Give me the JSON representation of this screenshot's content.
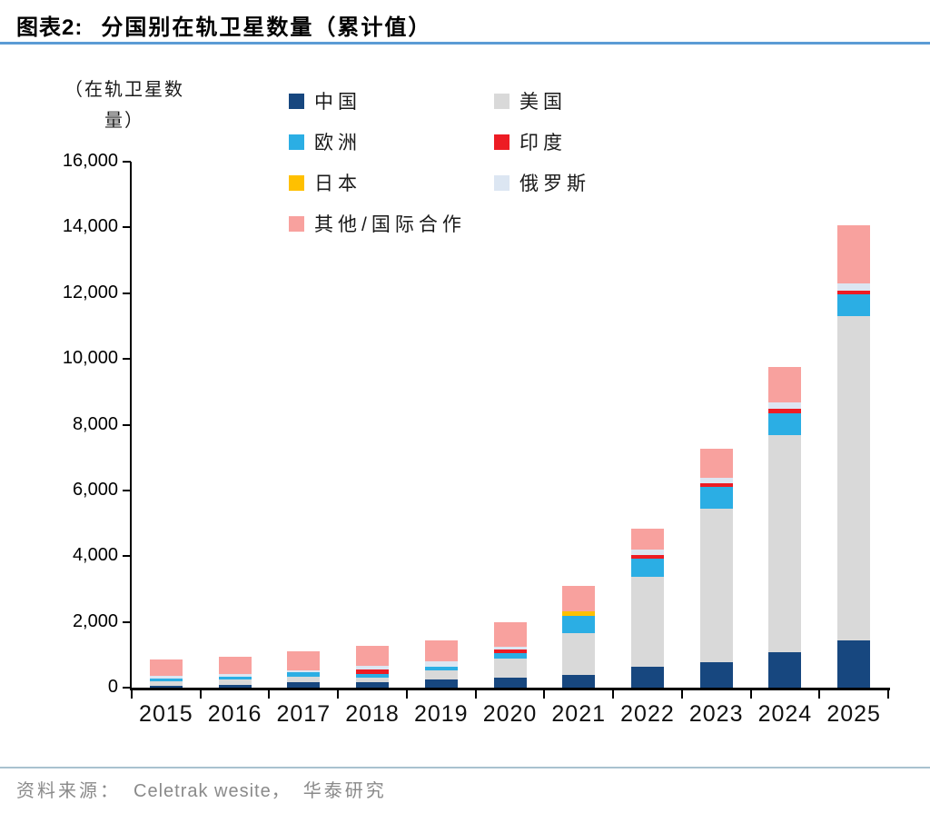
{
  "header": {
    "figure_label": "图表2:",
    "title": "分国别在轨卫星数量（累计值）"
  },
  "footer": {
    "source_prefix": "资料来源：",
    "source_name": "Celetrak wesite，",
    "source_org": "华泰研究"
  },
  "colors": {
    "axis": "#000000",
    "title_rule": "#5b9bd5",
    "footer_rule": "#a9c2cf",
    "source_text": "#8a8a8a"
  },
  "chart_data": {
    "type": "bar",
    "stacked": true,
    "title": "分国别在轨卫星数量（累计值）",
    "unit_label_lines": [
      "（在轨卫星数",
      "量）"
    ],
    "xlabel": "",
    "ylabel": "（在轨卫星数量）",
    "ylim": [
      0,
      16000
    ],
    "ytick_step": 2000,
    "yticks": [
      "0",
      "2,000",
      "4,000",
      "6,000",
      "8,000",
      "10,000",
      "12,000",
      "14,000",
      "16,000"
    ],
    "grid": false,
    "legend_position": "top",
    "categories": [
      "2015",
      "2016",
      "2017",
      "2018",
      "2019",
      "2020",
      "2021",
      "2022",
      "2023",
      "2024",
      "2025"
    ],
    "series": [
      {
        "name": "中国",
        "key": "china",
        "color": "#17477f",
        "values": [
          60,
          70,
          165,
          165,
          250,
          300,
          390,
          640,
          775,
          1080,
          1440
        ]
      },
      {
        "name": "美国",
        "key": "usa",
        "color": "#d9d9d9",
        "values": [
          150,
          160,
          165,
          140,
          275,
          580,
          1270,
          2735,
          4670,
          6600,
          9860
        ]
      },
      {
        "name": "欧洲",
        "key": "europe",
        "color": "#2baee4",
        "values": [
          90,
          95,
          140,
          110,
          110,
          165,
          520,
          550,
          660,
          660,
          660
        ]
      },
      {
        "name": "印度",
        "key": "india",
        "color": "#ed1c24",
        "values": [
          0,
          0,
          0,
          140,
          0,
          110,
          0,
          110,
          110,
          140,
          110
        ]
      },
      {
        "name": "日本",
        "key": "japan",
        "color": "#ffc000",
        "values": [
          0,
          0,
          0,
          0,
          0,
          0,
          140,
          0,
          0,
          0,
          0
        ]
      },
      {
        "name": "俄罗斯",
        "key": "russia",
        "color": "#dce6f2",
        "values": [
          75,
          85,
          55,
          110,
          165,
          85,
          0,
          165,
          165,
          190,
          220
        ]
      },
      {
        "name": "其他/国际合作",
        "key": "other",
        "color": "#f8a19e",
        "values": [
          505,
          530,
          580,
          610,
          635,
          745,
          775,
          635,
          885,
          1080,
          1770
        ]
      }
    ]
  }
}
